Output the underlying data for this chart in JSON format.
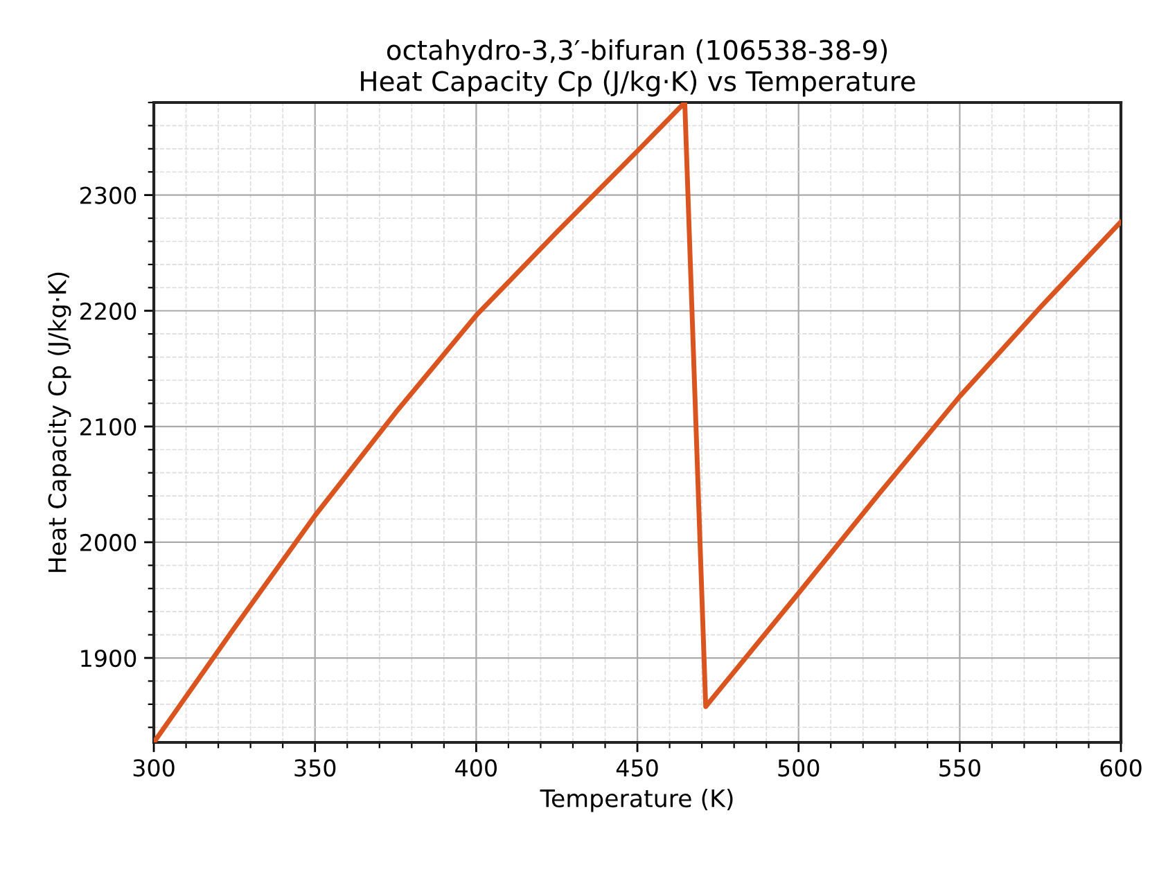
{
  "chart_data": {
    "type": "line",
    "title": "octahydro-3,3′-bifuran (106538-38-9)\nHeat Capacity Cp (J/kg·K) vs Temperature",
    "xlabel": "Temperature (K)",
    "ylabel": "Heat Capacity Cp (J/kg·K)",
    "x": [
      300,
      325,
      350,
      375,
      400,
      425,
      450,
      464.7,
      471.2,
      500,
      525,
      550,
      575,
      600
    ],
    "series": [
      {
        "color": "#d9541e",
        "values": [
          1827,
          1926,
          2023,
          2112,
          2196,
          2268,
          2338,
          2380,
          1858,
          1956,
          2042,
          2126,
          2203,
          2277
        ]
      }
    ],
    "xlim": [
      300,
      600
    ],
    "ylim": [
      1827,
      2380
    ],
    "xticks": [
      300,
      {
        "value": 310,
        "label": null
      },
      {
        "value": 320,
        "label": null
      },
      {
        "value": 330,
        "label": null
      },
      {
        "value": 340,
        "label": null
      },
      350,
      {
        "value": 360,
        "label": null
      },
      {
        "value": 370,
        "label": null
      },
      {
        "value": 380,
        "label": null
      },
      {
        "value": 390,
        "label": null
      },
      400,
      {
        "value": 410,
        "label": null
      },
      {
        "value": 420,
        "label": null
      },
      {
        "value": 430,
        "label": null
      },
      {
        "value": 440,
        "label": null
      },
      450,
      {
        "value": 460,
        "label": null
      },
      {
        "value": 470,
        "label": null
      },
      {
        "value": 480,
        "label": null
      },
      {
        "value": 490,
        "label": null
      },
      500,
      {
        "value": 510,
        "label": null
      },
      {
        "value": 520,
        "label": null
      },
      {
        "value": 530,
        "label": null
      },
      {
        "value": 540,
        "label": null
      },
      550,
      {
        "value": 560,
        "label": null
      },
      {
        "value": 570,
        "label": null
      },
      {
        "value": 580,
        "label": null
      },
      {
        "value": 590,
        "label": null
      },
      600
    ],
    "yticks": [
      {
        "value": 1840,
        "label": null
      },
      {
        "value": 1860,
        "label": null
      },
      {
        "value": 1880,
        "label": null
      },
      1900,
      {
        "value": 1920,
        "label": null
      },
      {
        "value": 1940,
        "label": null
      },
      {
        "value": 1960,
        "label": null
      },
      {
        "value": 1980,
        "label": null
      },
      2000,
      {
        "value": 2020,
        "label": null
      },
      {
        "value": 2040,
        "label": null
      },
      {
        "value": 2060,
        "label": null
      },
      {
        "value": 2080,
        "label": null
      },
      2100,
      {
        "value": 2120,
        "label": null
      },
      {
        "value": 2140,
        "label": null
      },
      {
        "value": 2160,
        "label": null
      },
      {
        "value": 2180,
        "label": null
      },
      2200,
      {
        "value": 2220,
        "label": null
      },
      {
        "value": 2240,
        "label": null
      },
      {
        "value": 2260,
        "label": null
      },
      {
        "value": 2280,
        "label": null
      },
      2300,
      {
        "value": 2320,
        "label": null
      },
      {
        "value": 2340,
        "label": null
      },
      {
        "value": 2360,
        "label": null
      },
      {
        "value": 2380,
        "label": null
      }
    ],
    "grid": true,
    "marker": "none",
    "line_style": "solid"
  }
}
